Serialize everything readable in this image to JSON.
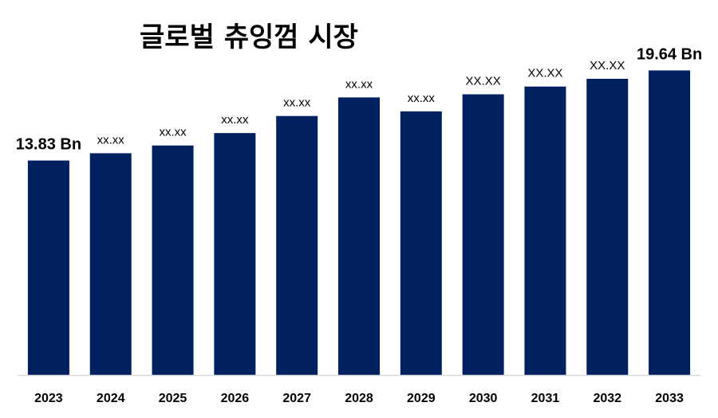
{
  "chart_data": {
    "type": "bar",
    "title": "글로벌 츄잉껌 시장",
    "xlabel": "",
    "ylabel": "",
    "ylim": [
      0,
      23
    ],
    "grid": false,
    "bar_color": "#002060",
    "axis_color": "#d9d9d9",
    "categories": [
      "2023",
      "2024",
      "2025",
      "2026",
      "2027",
      "2028",
      "2029",
      "2030",
      "2031",
      "2032",
      "2033"
    ],
    "values": [
      13.83,
      14.3,
      14.8,
      15.6,
      16.7,
      17.9,
      17.0,
      18.1,
      18.6,
      19.1,
      19.64
    ],
    "data_labels": [
      "13.83 Bn",
      "xx.xx",
      "xx.xx",
      "xx.xx",
      "xx.xx",
      "xx.xx",
      "xx.xx",
      "XX.XX",
      "XX.XX",
      "XX.XX",
      "19.64 Bn"
    ]
  }
}
